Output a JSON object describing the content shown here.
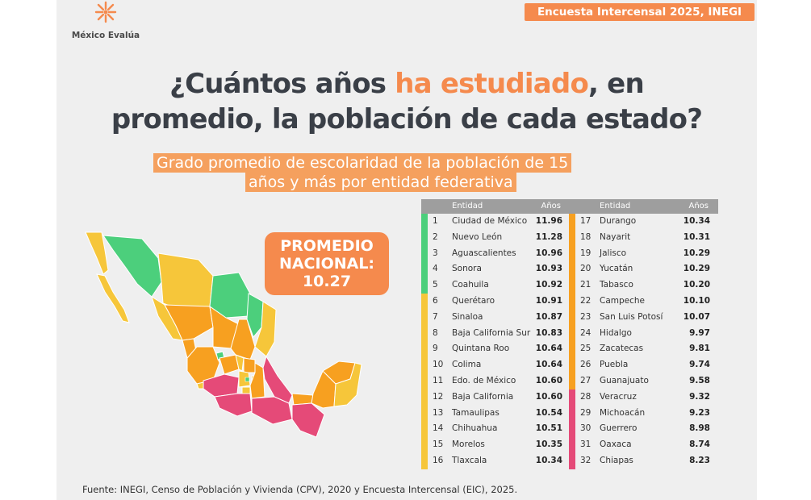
{
  "header": {
    "logo_text": "México Evalúa",
    "source_badge": "Encuesta Intercensal 2025, INEGI"
  },
  "title": {
    "line1_pre": "¿Cuántos años ",
    "line1_accent": "ha estudiado",
    "line1_post": ", en",
    "line2": "promedio, la población de cada estado?"
  },
  "subtitle": {
    "line1": "Grado promedio de escolaridad de la población de 15",
    "line2": "años y más por entidad federativa"
  },
  "national_average": {
    "line1": "PROMEDIO",
    "line2": "NACIONAL:",
    "value": "10.27"
  },
  "colors": {
    "green": "#4ccf7c",
    "yellow": "#f6c63a",
    "orange": "#f7a020",
    "pink": "#e54a78",
    "accent": "#f58a4d"
  },
  "chart_data": {
    "type": "table",
    "columns": [
      "Entidad",
      "Años"
    ],
    "rows": [
      {
        "rank": "1",
        "state": "Ciudad de México",
        "value": 11.96,
        "group": "green"
      },
      {
        "rank": "2",
        "state": "Nuevo León",
        "value": 11.28,
        "group": "green"
      },
      {
        "rank": "3",
        "state": "Aguascalientes",
        "value": 10.96,
        "group": "green"
      },
      {
        "rank": "4",
        "state": "Sonora",
        "value": 10.93,
        "group": "green"
      },
      {
        "rank": "5",
        "state": "Coahuila",
        "value": 10.92,
        "group": "green"
      },
      {
        "rank": "6",
        "state": "Querétaro",
        "value": 10.91,
        "group": "yellow"
      },
      {
        "rank": "7",
        "state": "Sinaloa",
        "value": 10.87,
        "group": "yellow"
      },
      {
        "rank": "8",
        "state": "Baja California Sur",
        "value": 10.83,
        "group": "yellow"
      },
      {
        "rank": "9",
        "state": "Quintana Roo",
        "value": 10.64,
        "group": "yellow"
      },
      {
        "rank": "10",
        "state": "Colima",
        "value": 10.64,
        "group": "yellow"
      },
      {
        "rank": "11",
        "state": "Edo. de México",
        "value": 10.6,
        "group": "yellow"
      },
      {
        "rank": "12",
        "state": "Baja California",
        "value": 10.6,
        "group": "yellow"
      },
      {
        "rank": "13",
        "state": "Tamaulipas",
        "value": 10.54,
        "group": "yellow"
      },
      {
        "rank": "14",
        "state": "Chihuahua",
        "value": 10.51,
        "group": "yellow"
      },
      {
        "rank": "15",
        "state": "Morelos",
        "value": 10.35,
        "group": "yellow"
      },
      {
        "rank": "16",
        "state": "Tlaxcala",
        "value": 10.34,
        "group": "yellow"
      },
      {
        "rank": "17",
        "state": "Durango",
        "value": 10.34,
        "group": "orange"
      },
      {
        "rank": "18",
        "state": "Nayarit",
        "value": 10.31,
        "group": "orange"
      },
      {
        "rank": "19",
        "state": "Jalisco",
        "value": 10.29,
        "group": "orange"
      },
      {
        "rank": "20",
        "state": "Yucatán",
        "value": 10.29,
        "group": "orange"
      },
      {
        "rank": "21",
        "state": "Tabasco",
        "value": 10.2,
        "group": "orange"
      },
      {
        "rank": "22",
        "state": "Campeche",
        "value": 10.1,
        "group": "orange"
      },
      {
        "rank": "23",
        "state": "San Luis Potosí",
        "value": 10.07,
        "group": "orange"
      },
      {
        "rank": "24",
        "state": "Hidalgo",
        "value": 9.97,
        "group": "orange"
      },
      {
        "rank": "25",
        "state": "Zacatecas",
        "value": 9.81,
        "group": "orange"
      },
      {
        "rank": "26",
        "state": "Puebla",
        "value": 9.74,
        "group": "orange"
      },
      {
        "rank": "27",
        "state": "Guanajuato",
        "value": 9.58,
        "group": "orange"
      },
      {
        "rank": "28",
        "state": "Veracruz",
        "value": 9.32,
        "group": "pink"
      },
      {
        "rank": "29",
        "state": "Michoacán",
        "value": 9.23,
        "group": "pink"
      },
      {
        "rank": "30",
        "state": "Guerrero",
        "value": 8.98,
        "group": "pink"
      },
      {
        "rank": "31",
        "state": "Oaxaca",
        "value": 8.74,
        "group": "pink"
      },
      {
        "rank": "32",
        "state": "Chiapas",
        "value": 8.23,
        "group": "pink"
      }
    ]
  },
  "footer": {
    "source": "Fuente: INEGI, Censo de Población y Vivienda (CPV), 2020 y Encuesta Intercensal (EIC), 2025."
  }
}
